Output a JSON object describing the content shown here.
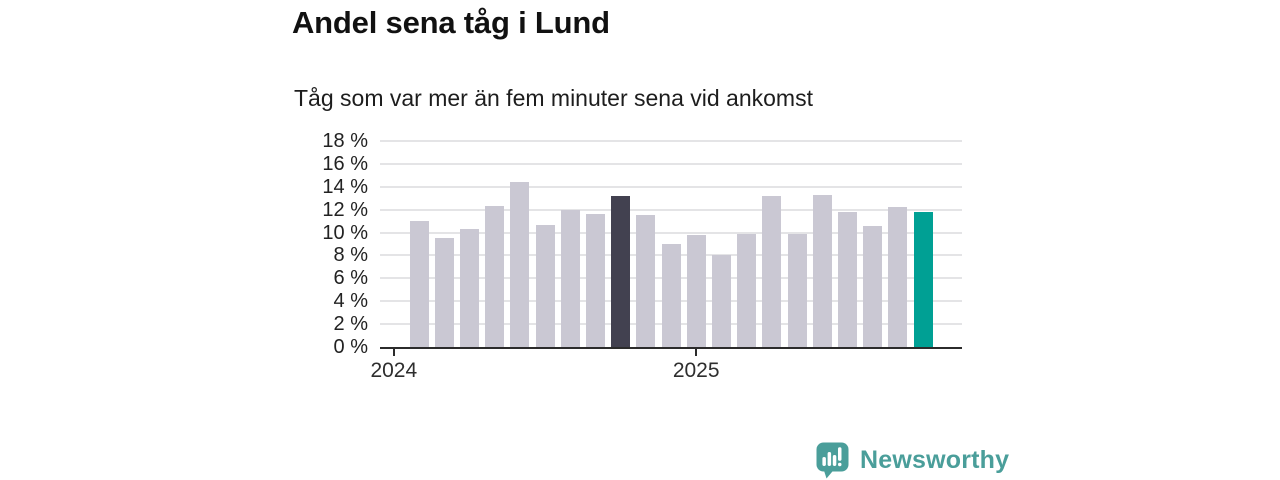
{
  "header": {
    "title": "Andel sena tåg i Lund",
    "subtitle": "Tåg som var mer än fem minuter sena vid ankomst"
  },
  "chart_data": {
    "type": "bar",
    "title": "Andel sena tåg i Lund",
    "subtitle": "Tåg som var mer än fem minuter sena vid ankomst",
    "unit": "%",
    "values": [
      11.0,
      9.5,
      10.3,
      12.3,
      14.4,
      10.7,
      12.0,
      11.6,
      13.2,
      11.5,
      9.0,
      9.8,
      8.0,
      9.9,
      13.2,
      9.9,
      13.3,
      11.8,
      10.6,
      12.2,
      11.8
    ],
    "highlight": {
      "dark_index": 8,
      "accent_index": 20
    },
    "ylim": [
      0,
      18
    ],
    "y_tick_step": 2,
    "y_tick_labels": [
      "0 %",
      "2 %",
      "4 %",
      "6 %",
      "8 %",
      "10 %",
      "12 %",
      "14 %",
      "16 %",
      "18 %"
    ],
    "x_ticks": [
      {
        "label": "2024",
        "bar_index": -1
      },
      {
        "label": "2025",
        "bar_index": 11
      }
    ],
    "grid": true,
    "legend": null,
    "colors": {
      "bar": "#cac8d3",
      "dark": "#424150",
      "accent": "#00a094",
      "grid": "#e4e4e6",
      "axis": "#2b2b2b",
      "tick_text": "#2e2e2e"
    }
  },
  "footer": {
    "brand": "Newsworthy",
    "brand_color": "#4a9e9a",
    "logo_icon": "speech-bubble-bar-chart-icon"
  }
}
